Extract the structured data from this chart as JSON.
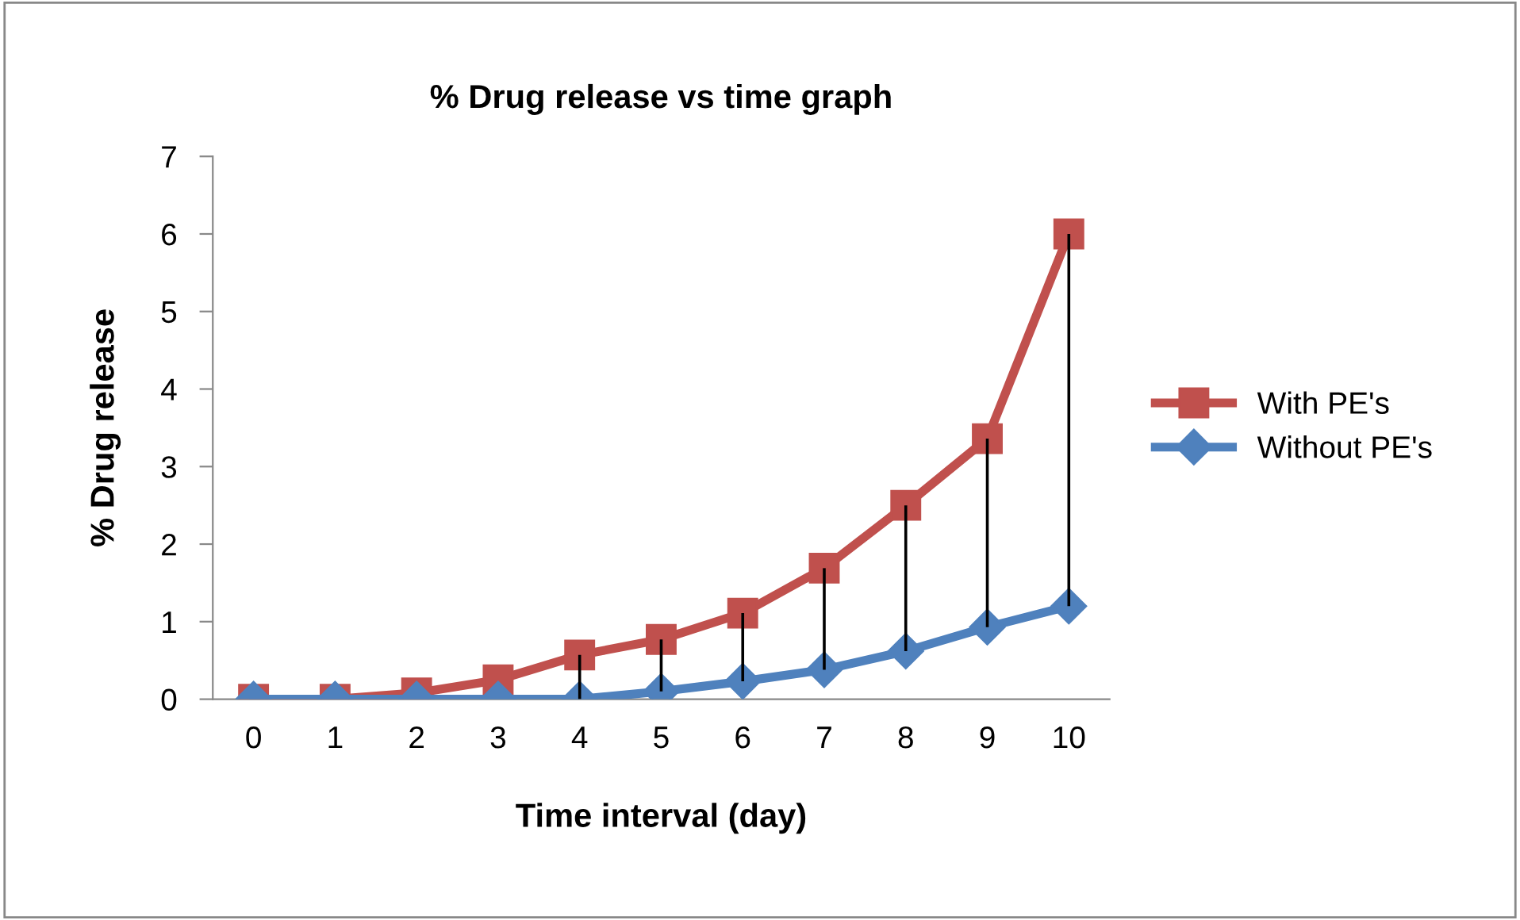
{
  "chart_data": {
    "type": "line",
    "title": "% Drug release vs time graph",
    "xlabel": "Time interval (day)",
    "ylabel": "% Drug release",
    "categories": [
      "0",
      "1",
      "2",
      "3",
      "4",
      "5",
      "6",
      "7",
      "8",
      "9",
      "10"
    ],
    "series": [
      {
        "name": "With PE's",
        "color": "#c0504d",
        "marker": "square",
        "values": [
          0,
          0,
          0.08,
          0.25,
          0.57,
          0.77,
          1.11,
          1.69,
          2.5,
          3.36,
          6.0
        ]
      },
      {
        "name": "Without PE's",
        "color": "#4f81bd",
        "marker": "diamond",
        "values": [
          0,
          0,
          0,
          0,
          0,
          0.1,
          0.23,
          0.38,
          0.62,
          0.93,
          1.2
        ],
        "errors": [
          null,
          null,
          null,
          null,
          [
            0,
            0.57
          ],
          [
            0.1,
            0.77
          ],
          [
            0.23,
            1.11
          ],
          [
            0.38,
            1.69
          ],
          [
            0.62,
            2.5
          ],
          [
            0.93,
            3.36
          ],
          [
            1.2,
            6.0
          ]
        ]
      }
    ],
    "ylim": [
      0,
      7
    ],
    "yticks": [
      0,
      1,
      2,
      3,
      4,
      5,
      6,
      7
    ],
    "grid": false,
    "legend": "right"
  }
}
